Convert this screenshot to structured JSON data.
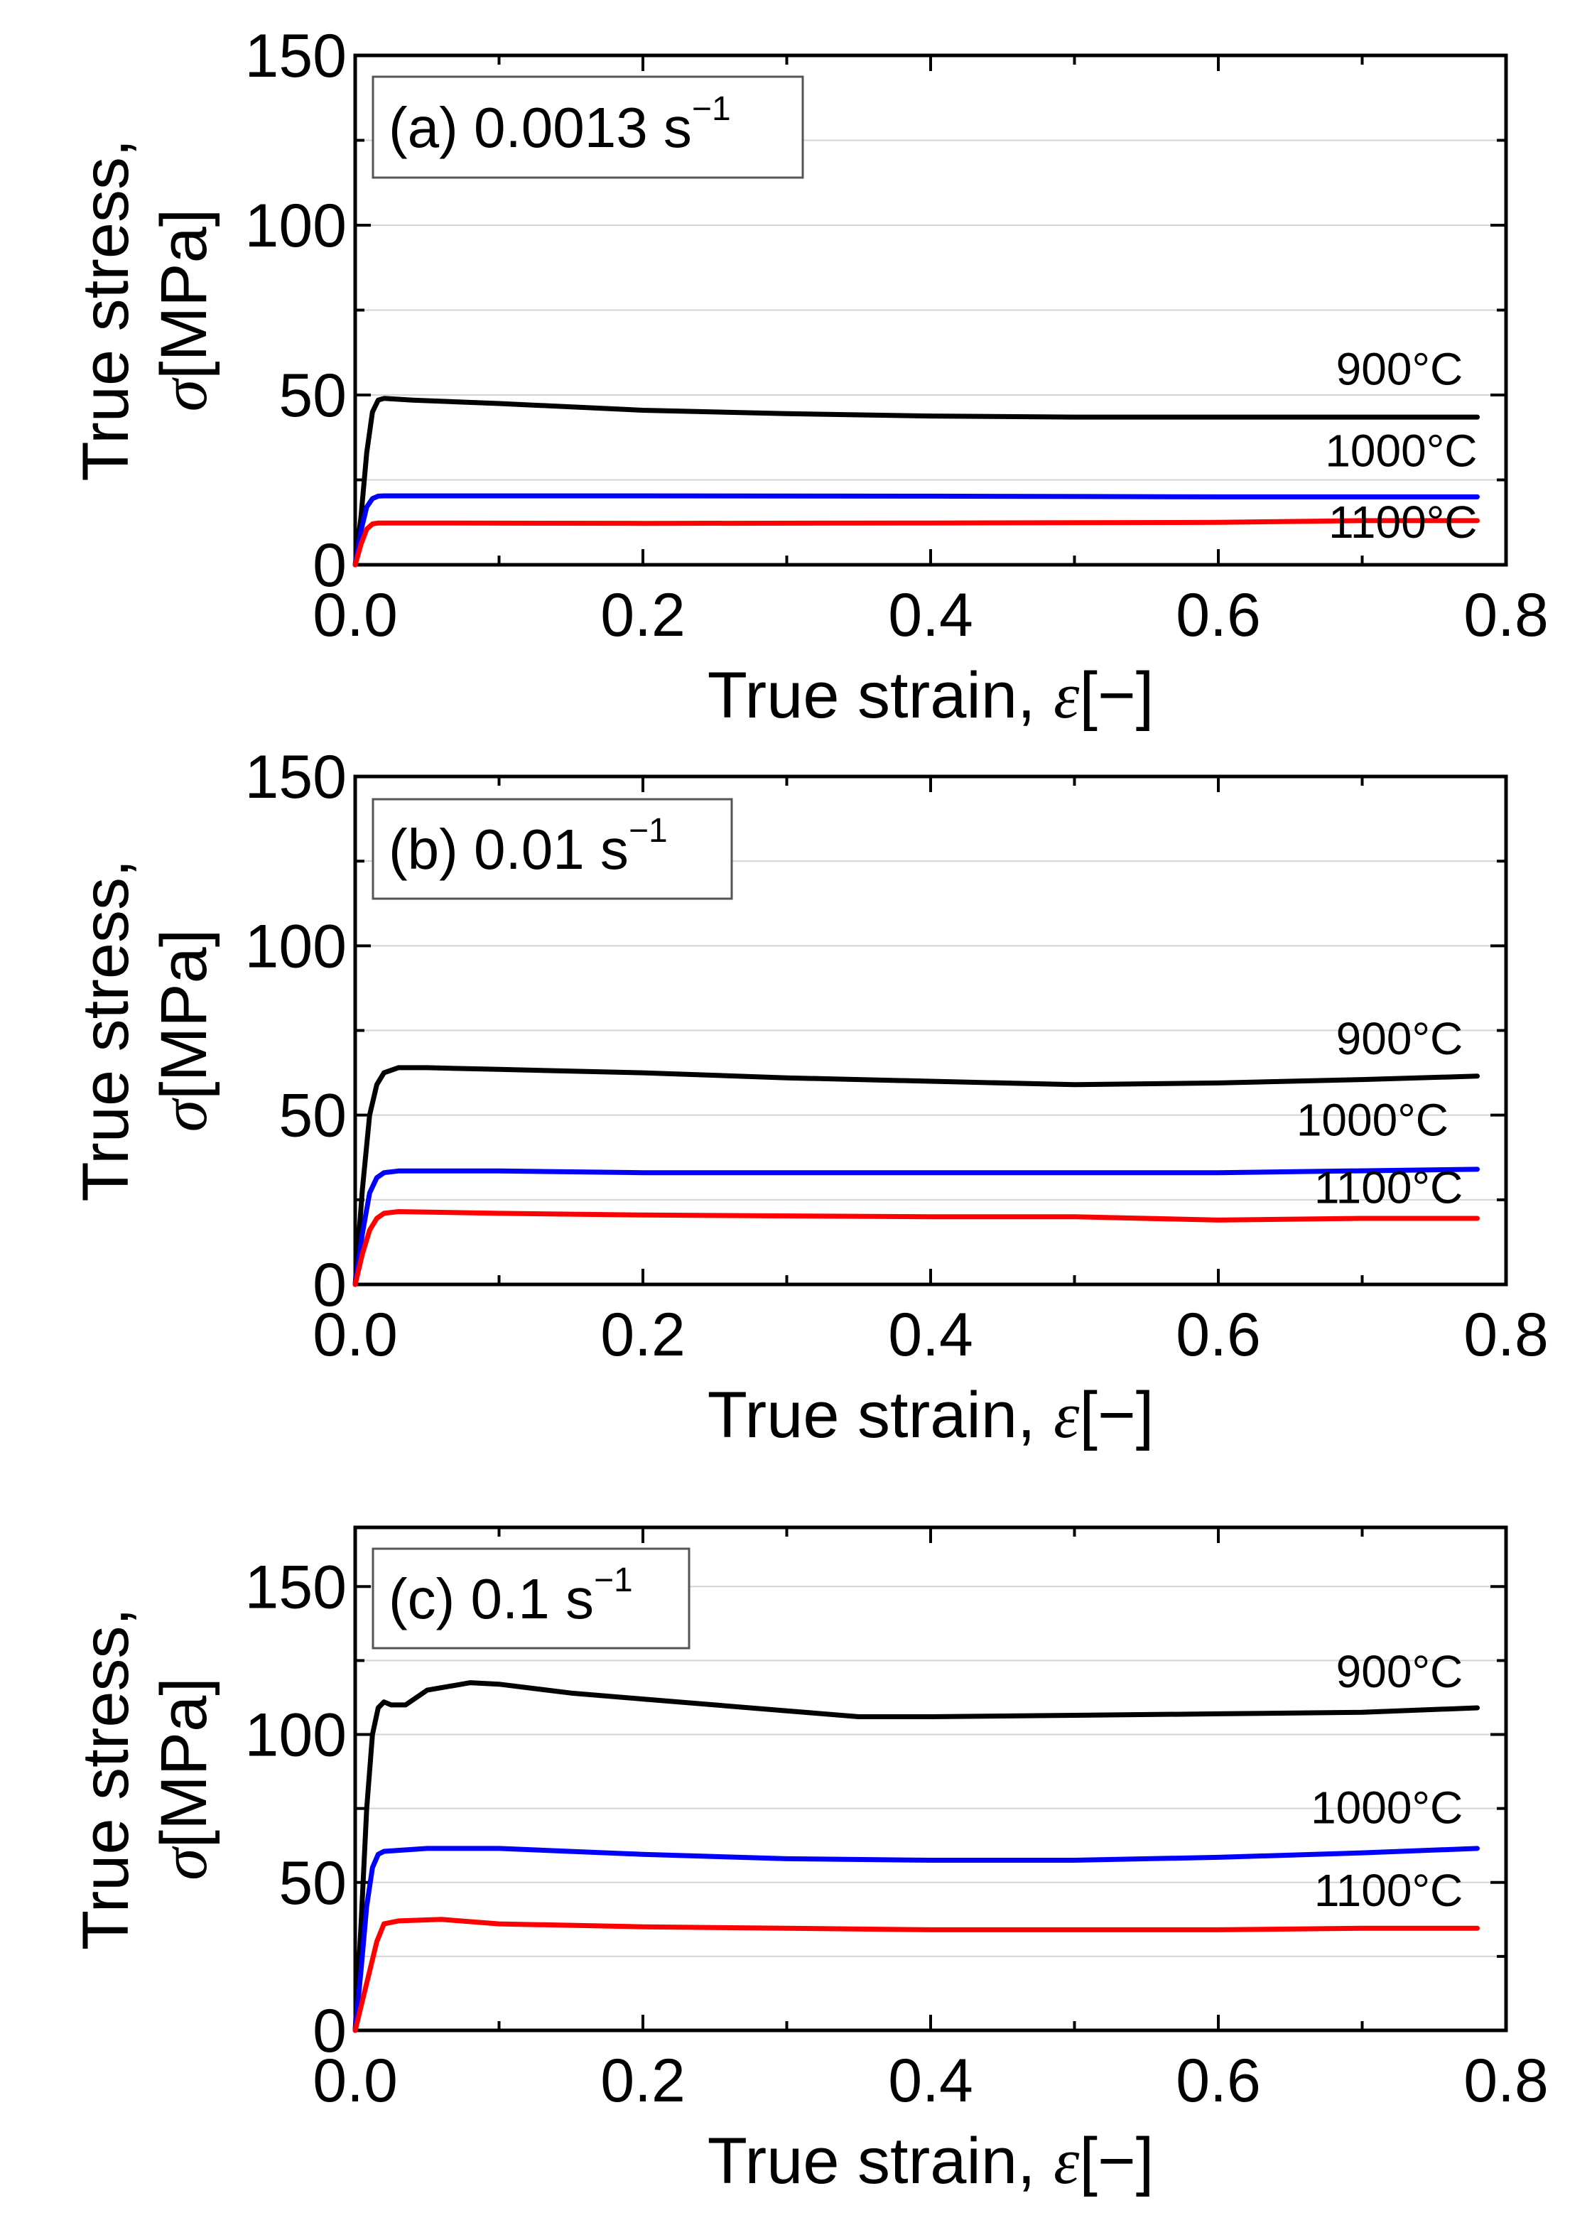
{
  "chart_data": [
    {
      "type": "line",
      "title": "(a) 0.0013 s",
      "title_superscript": "−1",
      "xlabel": "True strain,",
      "xlabel_symbol": "ε",
      "xlabel_unit": "[−]",
      "ylabel_line1": "True stress,",
      "ylabel_symbol": "σ",
      "ylabel_unit": "[MPa]",
      "xlim": [
        0,
        0.8
      ],
      "ylim": [
        0,
        150
      ],
      "xticks": [
        0.0,
        0.2,
        0.4,
        0.6,
        0.8
      ],
      "xtick_labels": [
        "0.0",
        "0.2",
        "0.4",
        "0.6",
        "0.8"
      ],
      "yticks": [
        0,
        50,
        100,
        150
      ],
      "ytick_labels": [
        "0",
        "50",
        "100",
        "150"
      ],
      "gridlines_y": [
        25,
        50,
        75,
        100,
        125
      ],
      "series": [
        {
          "name": "900°C",
          "color": "#000000",
          "label_at": [
            0.77,
            53
          ],
          "x": [
            0,
            0.004,
            0.008,
            0.012,
            0.016,
            0.02,
            0.04,
            0.1,
            0.2,
            0.3,
            0.4,
            0.5,
            0.6,
            0.7,
            0.78
          ],
          "y": [
            0,
            14,
            33,
            45,
            48.5,
            49,
            48.5,
            47.5,
            45.5,
            44.5,
            43.8,
            43.5,
            43.5,
            43.5,
            43.5
          ]
        },
        {
          "name": "1000°C",
          "color": "#0000ff",
          "label_at": [
            0.78,
            29
          ],
          "x": [
            0,
            0.004,
            0.008,
            0.012,
            0.016,
            0.02,
            0.1,
            0.2,
            0.4,
            0.6,
            0.78
          ],
          "y": [
            0,
            10,
            17,
            19.5,
            20.2,
            20.3,
            20.3,
            20.3,
            20.2,
            20,
            20
          ]
        },
        {
          "name": "1100°C",
          "color": "#ff0000",
          "label_at": [
            0.78,
            8
          ],
          "x": [
            0,
            0.004,
            0.008,
            0.012,
            0.016,
            0.05,
            0.2,
            0.4,
            0.6,
            0.7,
            0.78
          ],
          "y": [
            0,
            6,
            10.5,
            12,
            12.3,
            12.3,
            12.2,
            12.3,
            12.5,
            13,
            13
          ]
        }
      ]
    },
    {
      "type": "line",
      "title": "(b) 0.01 s",
      "title_superscript": "−1",
      "xlabel": "True strain,",
      "xlabel_symbol": "ε",
      "xlabel_unit": "[−]",
      "ylabel_line1": "True stress,",
      "ylabel_symbol": "σ",
      "ylabel_unit": "[MPa]",
      "xlim": [
        0,
        0.8
      ],
      "ylim": [
        0,
        150
      ],
      "xticks": [
        0.0,
        0.2,
        0.4,
        0.6,
        0.8
      ],
      "xtick_labels": [
        "0.0",
        "0.2",
        "0.4",
        "0.6",
        "0.8"
      ],
      "yticks": [
        0,
        50,
        100,
        150
      ],
      "ytick_labels": [
        "0",
        "50",
        "100",
        "150"
      ],
      "gridlines_y": [
        25,
        50,
        75,
        100,
        125
      ],
      "series": [
        {
          "name": "900°C",
          "color": "#000000",
          "label_at": [
            0.77,
            68
          ],
          "x": [
            0,
            0.005,
            0.01,
            0.015,
            0.02,
            0.03,
            0.05,
            0.1,
            0.2,
            0.3,
            0.4,
            0.5,
            0.6,
            0.7,
            0.78
          ],
          "y": [
            0,
            28,
            50,
            59,
            62.5,
            64,
            64,
            63.5,
            62.5,
            61,
            60,
            59,
            59.5,
            60.5,
            61.5
          ]
        },
        {
          "name": "1000°C",
          "color": "#0000ff",
          "label_at": [
            0.76,
            44
          ],
          "x": [
            0,
            0.005,
            0.01,
            0.015,
            0.02,
            0.03,
            0.1,
            0.2,
            0.4,
            0.6,
            0.78
          ],
          "y": [
            0,
            15,
            27,
            31.5,
            33,
            33.5,
            33.5,
            33,
            33,
            33,
            34
          ]
        },
        {
          "name": "1100°C",
          "color": "#ff0000",
          "label_at": [
            0.77,
            24
          ],
          "x": [
            0,
            0.005,
            0.01,
            0.015,
            0.02,
            0.03,
            0.1,
            0.2,
            0.4,
            0.5,
            0.6,
            0.7,
            0.78
          ],
          "y": [
            0,
            9,
            16,
            19.5,
            21,
            21.5,
            21,
            20.5,
            20,
            20,
            19,
            19.5,
            19.5
          ]
        }
      ]
    },
    {
      "type": "line",
      "title": "(c) 0.1 s",
      "title_superscript": "−1",
      "xlabel": "True strain,",
      "xlabel_symbol": "ε",
      "xlabel_unit": "[−]",
      "ylabel_line1": "True stress,",
      "ylabel_symbol": "σ",
      "ylabel_unit": "[MPa]",
      "xlim": [
        0,
        0.8
      ],
      "ylim": [
        0,
        170
      ],
      "xticks": [
        0.0,
        0.2,
        0.4,
        0.6,
        0.8
      ],
      "xtick_labels": [
        "0.0",
        "0.2",
        "0.4",
        "0.6",
        "0.8"
      ],
      "yticks": [
        0,
        50,
        100,
        150
      ],
      "ytick_labels": [
        "0",
        "50",
        "100",
        "150"
      ],
      "gridlines_y": [
        25,
        50,
        75,
        100,
        125,
        150
      ],
      "series": [
        {
          "name": "900°C",
          "color": "#000000",
          "label_at": [
            0.77,
            116
          ],
          "x": [
            0,
            0.004,
            0.008,
            0.012,
            0.016,
            0.02,
            0.025,
            0.035,
            0.05,
            0.08,
            0.1,
            0.15,
            0.2,
            0.3,
            0.35,
            0.4,
            0.5,
            0.6,
            0.7,
            0.78
          ],
          "y": [
            0,
            35,
            75,
            100,
            109,
            111,
            110,
            110,
            115,
            117.5,
            117,
            114,
            112,
            108,
            106,
            106,
            106.5,
            107,
            107.5,
            109
          ]
        },
        {
          "name": "1000°C",
          "color": "#0000ff",
          "label_at": [
            0.77,
            70
          ],
          "x": [
            0,
            0.004,
            0.008,
            0.012,
            0.016,
            0.02,
            0.05,
            0.1,
            0.2,
            0.3,
            0.4,
            0.5,
            0.6,
            0.7,
            0.78
          ],
          "y": [
            0,
            20,
            42,
            55,
            59.5,
            60.5,
            61.5,
            61.5,
            59.5,
            58,
            57.5,
            57.5,
            58.5,
            60,
            61.5
          ]
        },
        {
          "name": "1100°C",
          "color": "#ff0000",
          "label_at": [
            0.77,
            42
          ],
          "x": [
            0,
            0.005,
            0.01,
            0.015,
            0.02,
            0.03,
            0.06,
            0.1,
            0.2,
            0.3,
            0.4,
            0.5,
            0.6,
            0.7,
            0.78
          ],
          "y": [
            0,
            10,
            20,
            30,
            36,
            37,
            37.5,
            36,
            35,
            34.5,
            34,
            34,
            34,
            34.5,
            34.5
          ]
        }
      ]
    }
  ]
}
